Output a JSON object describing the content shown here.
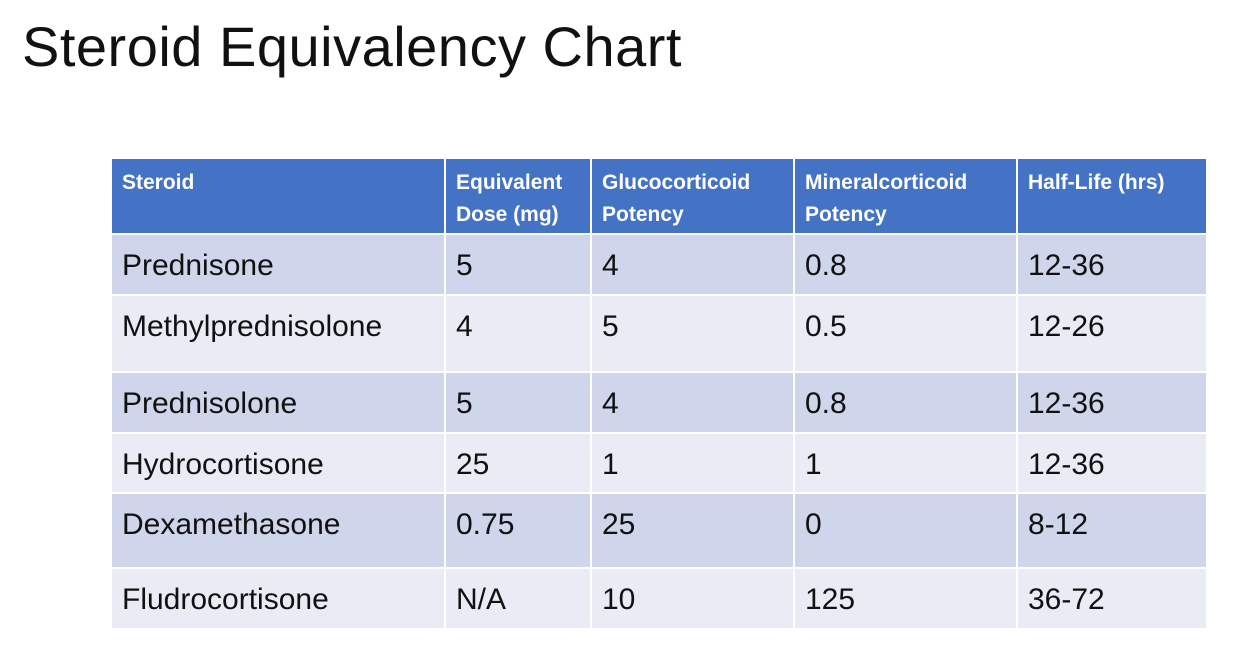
{
  "title": "Steroid Equivalency Chart",
  "table": {
    "headers": [
      "Steroid",
      "Equivalent Dose (mg)",
      "Glucocorticoid Potency",
      "Mineralcorticoid Potency",
      "Half-Life (hrs)"
    ],
    "rows": [
      [
        "Prednisone",
        "5",
        "4",
        "0.8",
        "12-36"
      ],
      [
        "Methylprednisolone",
        "4",
        "5",
        "0.5",
        "12-26"
      ],
      [
        "Prednisolone",
        "5",
        "4",
        "0.8",
        "12-36"
      ],
      [
        "Hydrocortisone",
        "25",
        "1",
        "1",
        "12-36"
      ],
      [
        "Dexamethasone",
        "0.75",
        "25",
        "0",
        "8-12"
      ],
      [
        "Fludrocortisone",
        "N/A",
        "10",
        "125",
        "36-72"
      ]
    ]
  },
  "colors": {
    "header_bg": "#4472c4",
    "row_odd_bg": "#cfd5ea",
    "row_even_bg": "#e9ebf5"
  }
}
